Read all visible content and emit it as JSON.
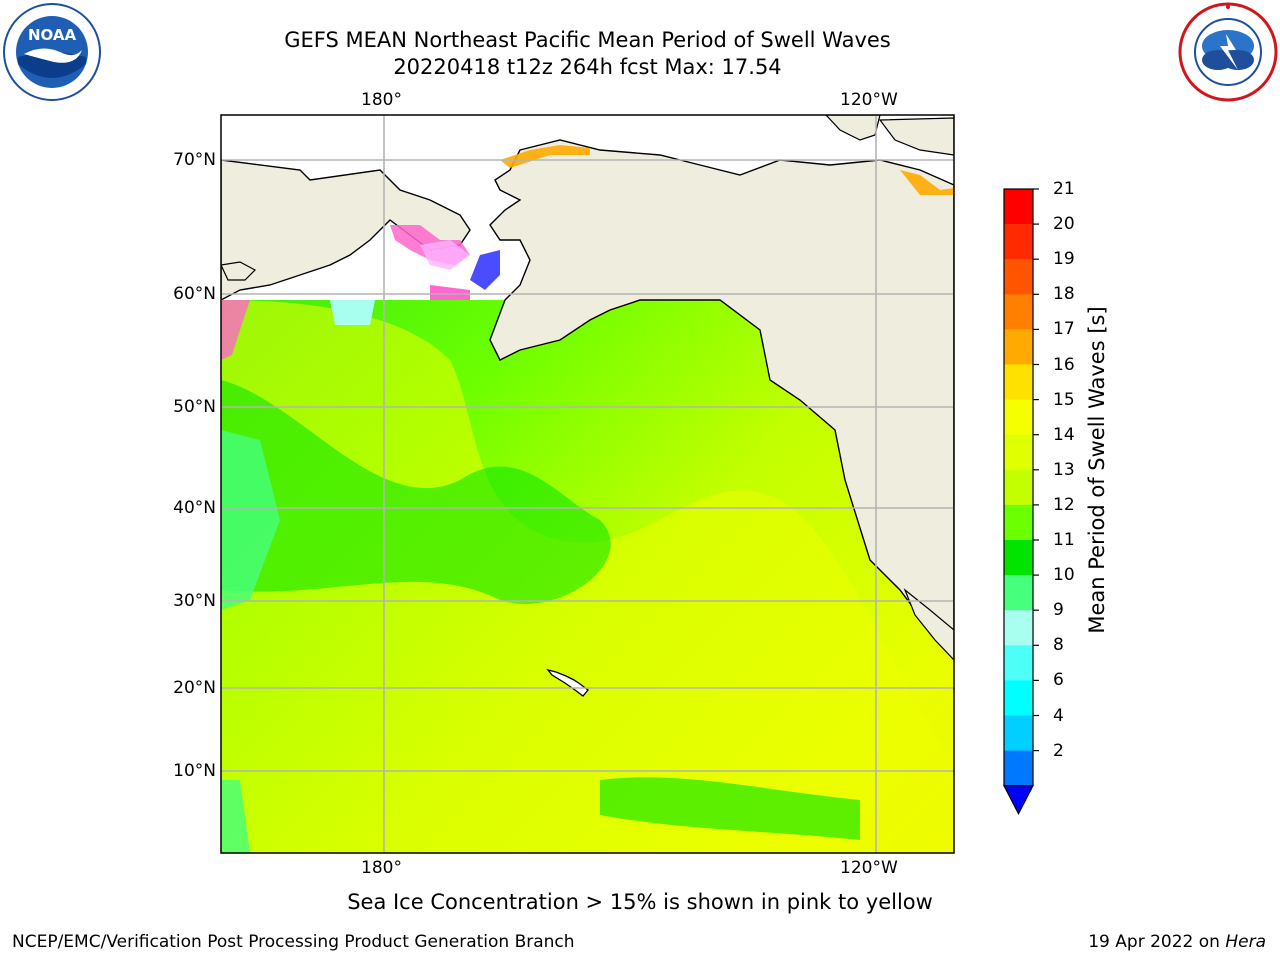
{
  "header": {
    "title_line1": "GEFS MEAN Northeast Pacific Mean Period of Swell Waves",
    "title_line2": "20220418 t12z 264h fcst   Max: 17.54"
  },
  "logos": {
    "left": "noaa-logo",
    "left_text": "NOAA",
    "right": "national-weather-service-logo"
  },
  "map": {
    "region": "Northeast Pacific",
    "longitude_labels": [
      "180°",
      "120°W"
    ],
    "latitude_labels": [
      "70°N",
      "60°N",
      "50°N",
      "40°N",
      "30°N",
      "20°N",
      "10°N"
    ],
    "colors": {
      "land": "#efedde",
      "ice_area": "#ffffff",
      "grid": "#b0b0b0",
      "coast": "#000000"
    }
  },
  "colorbar": {
    "title": "Mean Period of Swell Waves [s]",
    "ticks": [
      "21",
      "20",
      "19",
      "18",
      "17",
      "16",
      "15",
      "14",
      "13",
      "12",
      "11",
      "10",
      "9",
      "8",
      "6",
      "4",
      "2"
    ],
    "bins": [
      {
        "lo": "19",
        "hi": "20",
        "color": "#ff2a00"
      },
      {
        "lo": "20",
        "hi": "21",
        "color": "#ff0000"
      },
      {
        "lo": "18",
        "hi": "19",
        "color": "#ff5500"
      },
      {
        "lo": "17",
        "hi": "18",
        "color": "#ff8000"
      },
      {
        "lo": "16",
        "hi": "17",
        "color": "#ffaa00"
      },
      {
        "lo": "15",
        "hi": "16",
        "color": "#ffe100"
      },
      {
        "lo": "14",
        "hi": "15",
        "color": "#f6ff00"
      },
      {
        "lo": "13",
        "hi": "14",
        "color": "#e0ff00"
      },
      {
        "lo": "12",
        "hi": "13",
        "color": "#c3ff00"
      },
      {
        "lo": "11",
        "hi": "12",
        "color": "#6bff00"
      },
      {
        "lo": "10",
        "hi": "11",
        "color": "#00e400"
      },
      {
        "lo": "9",
        "hi": "10",
        "color": "#45ff7d"
      },
      {
        "lo": "8",
        "hi": "9",
        "color": "#a8ffef"
      },
      {
        "lo": "6",
        "hi": "8",
        "color": "#4dfff6"
      },
      {
        "lo": "4",
        "hi": "6",
        "color": "#00ffff"
      },
      {
        "lo": "2",
        "hi": "4",
        "color": "#00cfff"
      },
      {
        "lo": "<2",
        "hi": "2",
        "color": "#0078ff"
      }
    ],
    "under_color": "#0000ff"
  },
  "footer": {
    "note": "Sea Ice Concentration > 15% is shown in pink to yellow",
    "left": "NCEP/EMC/Verification Post Processing Product Generation Branch",
    "right_date": "19 Apr 2022 on ",
    "right_host": "Hera"
  }
}
